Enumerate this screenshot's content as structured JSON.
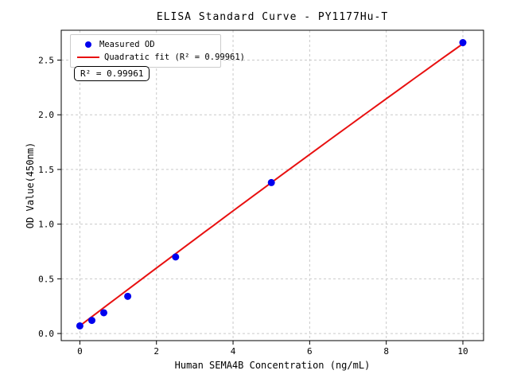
{
  "chart_data": {
    "type": "scatter",
    "title": "ELISA Standard Curve - PY1177Hu-T",
    "xlabel": "Human SEMA4B Concentration (ng/mL)",
    "ylabel": "OD Value(450nm)",
    "x": [
      0,
      0.313,
      0.625,
      1.25,
      2.5,
      5,
      10
    ],
    "y": [
      0.07,
      0.12,
      0.19,
      0.34,
      0.7,
      1.38,
      2.66
    ],
    "series": [
      {
        "name": "Measured OD",
        "marker": "circle",
        "color": "#0000ee"
      },
      {
        "name": "Quadratic fit (R² = 0.99961)",
        "marker": "line",
        "color": "#e81010"
      }
    ],
    "fit": {
      "type": "quadratic",
      "a": 0.07,
      "b": 0.266,
      "c": -0.0008,
      "x_start": 0,
      "x_end": 10,
      "r_squared": "0.99961"
    },
    "x_ticks": [
      0,
      2,
      4,
      6,
      8,
      10
    ],
    "x_tick_labels": [
      "0",
      "2",
      "4",
      "6",
      "8",
      "10"
    ],
    "y_ticks": [
      0.0,
      0.5,
      1.0,
      1.5,
      2.0,
      2.5
    ],
    "y_tick_labels": [
      "0.0",
      "0.5",
      "1.0",
      "1.5",
      "2.0",
      "2.5"
    ],
    "xlim": [
      -0.486,
      10.54
    ],
    "ylim": [
      -0.065,
      2.773
    ],
    "grid": "dashed",
    "legend_position": "upper left",
    "annotation": "R² = 0.99961",
    "colors": {
      "points": "#0000ee",
      "fit_line": "#e81010",
      "grid": "#c9c9c9",
      "spine": "#000000",
      "background": "#ffffff"
    }
  },
  "legend": {
    "items": [
      {
        "label": "Measured OD"
      },
      {
        "label": "Quadratic fit (R² = 0.99961)"
      }
    ]
  }
}
